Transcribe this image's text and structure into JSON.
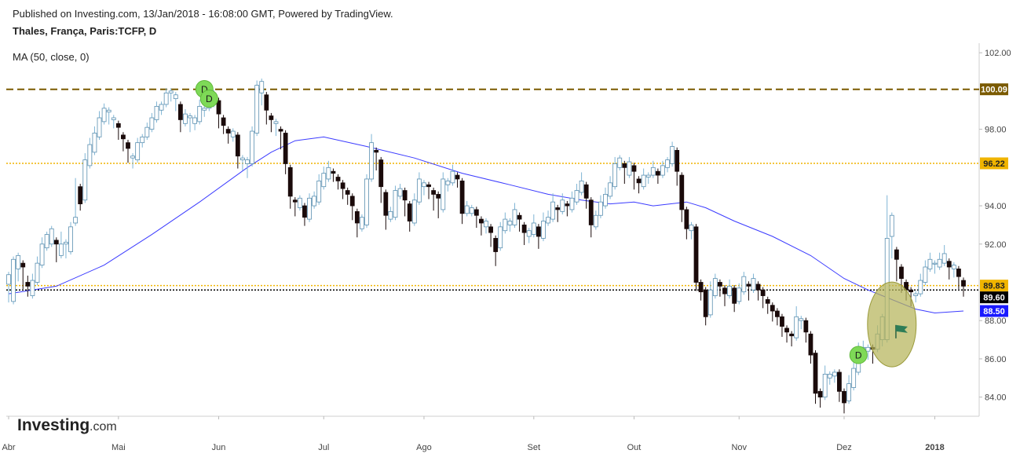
{
  "header": {
    "published": "Published on Investing.com, 13/Jan/2018 - 16:08:00 GMT, Powered by TradingView.",
    "symbol": "Thales, França, Paris:TCFP, D"
  },
  "indicator": {
    "label": "MA (50, close, 0)"
  },
  "logo": {
    "brand": "Investing",
    "suffix": ".com"
  },
  "colors": {
    "bull": "#ffffff",
    "bear": "#1a0a0a",
    "bull_border": "#9cc8e0",
    "ma": "#3b3bff",
    "resistance": "#7a5a00",
    "support": "#f0b400",
    "last_price": "#000000",
    "ellipse_fill": "#b5b45a",
    "markers": "#7ed957",
    "flag": "#2e7d57"
  },
  "chart_data": {
    "type": "candlestick",
    "title": "Thales, França, Paris:TCFP, D",
    "ylim": [
      83,
      102.5
    ],
    "y_ticks": [
      "84.00",
      "86.00",
      "88.00",
      "92.00",
      "94.00",
      "98.00",
      "102.00"
    ],
    "x_ticks": [
      "Abr",
      "Mai",
      "Jun",
      "Jul",
      "Ago",
      "Set",
      "Out",
      "Nov",
      "Dez",
      "2018"
    ],
    "x_tick_indices": [
      0,
      23,
      44,
      66,
      87,
      110,
      131,
      153,
      175,
      194
    ],
    "price_labels": [
      {
        "text": "100.09",
        "value": 100.09,
        "color": "#7a5a00"
      },
      {
        "text": "96.22",
        "value": 96.22,
        "color": "#f0b400"
      },
      {
        "text": "89.83",
        "value": 89.83,
        "color": "#f0b400"
      },
      {
        "text": "89.60",
        "value": 89.6,
        "color": "#000000"
      },
      {
        "text": "88.50",
        "value": 88.5,
        "color": "#1a1aff"
      }
    ],
    "h_lines": [
      {
        "value": 100.09,
        "style": "dashed",
        "color": "#7a5a00"
      },
      {
        "value": 96.22,
        "style": "dotted",
        "color": "#f0b400"
      },
      {
        "value": 89.83,
        "style": "dotted",
        "color": "#f0b400"
      },
      {
        "value": 89.6,
        "style": "dotted",
        "color": "#000000"
      }
    ],
    "markers": [
      {
        "label": "D",
        "index": 41,
        "price": 100.1
      },
      {
        "label": "D",
        "index": 42,
        "price": 99.6
      },
      {
        "label": "D",
        "index": 178,
        "price": 86.2
      }
    ],
    "ellipse": {
      "index": 185,
      "price": 87.8
    },
    "flag": {
      "index": 187,
      "price": 87.4
    },
    "ma": {
      "name": "MA (50, close, 0)",
      "points": [
        [
          0,
          89.4
        ],
        [
          10,
          89.8
        ],
        [
          20,
          90.9
        ],
        [
          30,
          92.5
        ],
        [
          40,
          94.2
        ],
        [
          50,
          96.0
        ],
        [
          55,
          96.8
        ],
        [
          60,
          97.4
        ],
        [
          66,
          97.6
        ],
        [
          75,
          97.1
        ],
        [
          85,
          96.5
        ],
        [
          95,
          95.7
        ],
        [
          105,
          95.1
        ],
        [
          113,
          94.6
        ],
        [
          120,
          94.3
        ],
        [
          126,
          94.1
        ],
        [
          131,
          94.2
        ],
        [
          135,
          94.0
        ],
        [
          142,
          94.2
        ],
        [
          146,
          93.9
        ],
        [
          152,
          93.2
        ],
        [
          160,
          92.4
        ],
        [
          168,
          91.4
        ],
        [
          175,
          90.2
        ],
        [
          180,
          89.6
        ],
        [
          185,
          89.1
        ],
        [
          190,
          88.6
        ],
        [
          194,
          88.4
        ],
        [
          200,
          88.5
        ]
      ]
    },
    "candles": [
      [
        89.9,
        90.4,
        89.2,
        89.1
      ],
      [
        89.0,
        91.2,
        89.3,
        90.8
      ],
      [
        90.7,
        91.4,
        90.2,
        91.0
      ],
      [
        91.0,
        90.8,
        89.8,
        90.0
      ],
      [
        90.0,
        89.8,
        90.2,
        89.4
      ],
      [
        89.3,
        90.1,
        89.8,
        90.3
      ],
      [
        90.0,
        91.0,
        90.8,
        91.2
      ],
      [
        90.9,
        92.0,
        91.6,
        92.2
      ],
      [
        91.8,
        92.5,
        92.0,
        91.8
      ],
      [
        92.0,
        92.8,
        92.3,
        92.2
      ],
      [
        92.2,
        92.0,
        91.3,
        91.2
      ],
      [
        91.4,
        92.0,
        91.9,
        92.5
      ],
      [
        92.0,
        92.1,
        91.5,
        91.4
      ],
      [
        91.6,
        92.9,
        92.5,
        93.0
      ],
      [
        93.1,
        93.4,
        95.2,
        95.3
      ],
      [
        95.0,
        94.1,
        93.9,
        94.0
      ],
      [
        94.3,
        96.4,
        96.0,
        96.6
      ],
      [
        96.1,
        97.2,
        96.8,
        97.4
      ],
      [
        96.8,
        97.8,
        97.5,
        98.0
      ],
      [
        97.6,
        98.6,
        98.3,
        98.8
      ],
      [
        98.4,
        99.1,
        98.8,
        99.2
      ],
      [
        98.9,
        99.0,
        98.6,
        98.4
      ],
      [
        98.5,
        98.6,
        98.4,
        98.2
      ],
      [
        98.3,
        98.1,
        97.9,
        97.6
      ],
      [
        97.7,
        97.5,
        97.2,
        97.0
      ],
      [
        97.3,
        97.0,
        96.8,
        96.4
      ],
      [
        96.5,
        96.6,
        96.2,
        96.1
      ],
      [
        96.4,
        97.3,
        97.0,
        97.4
      ],
      [
        97.3,
        97.6,
        97.5,
        97.2
      ],
      [
        97.6,
        98.1,
        98.0,
        98.2
      ],
      [
        98.0,
        98.6,
        98.5,
        98.7
      ],
      [
        98.5,
        99.2,
        99.0,
        99.3
      ],
      [
        99.0,
        99.3,
        99.1,
        98.9
      ],
      [
        99.3,
        99.9,
        99.7,
        100.0
      ],
      [
        99.9,
        100.0,
        99.9,
        99.6
      ],
      [
        99.6,
        99.8,
        99.2,
        99.1
      ],
      [
        99.3,
        98.5,
        98.2,
        98.0
      ],
      [
        98.3,
        98.8,
        98.6,
        98.9
      ],
      [
        98.6,
        98.7,
        98.2,
        98.0
      ],
      [
        98.3,
        98.6,
        98.4,
        98.1
      ],
      [
        98.4,
        99.2,
        99.0,
        99.4
      ],
      [
        99.0,
        99.1,
        98.9,
        98.8
      ],
      [
        99.1,
        100.1,
        99.9,
        100.2
      ],
      [
        99.8,
        99.9,
        99.4,
        99.3
      ],
      [
        99.5,
        98.8,
        98.5,
        98.2
      ],
      [
        98.6,
        98.2,
        98.0,
        97.9
      ],
      [
        98.0,
        97.8,
        97.6,
        97.4
      ],
      [
        97.6,
        97.9,
        97.7,
        97.5
      ],
      [
        97.7,
        96.6,
        96.3,
        96.1
      ],
      [
        96.4,
        96.5,
        96.2,
        96.0
      ],
      [
        96.2,
        96.4,
        96.1,
        95.6
      ],
      [
        96.2,
        97.9,
        97.7,
        98.0
      ],
      [
        97.8,
        100.3,
        100.0,
        100.4
      ],
      [
        99.9,
        100.5,
        99.8,
        99.4
      ],
      [
        99.8,
        99.0,
        98.6,
        98.4
      ],
      [
        98.7,
        98.5,
        98.2,
        98.0
      ],
      [
        98.3,
        98.4,
        98.0,
        97.8
      ],
      [
        98.0,
        97.9,
        97.8,
        97.1
      ],
      [
        97.8,
        96.2,
        96.0,
        95.8
      ],
      [
        96.0,
        94.5,
        94.3,
        94.0
      ],
      [
        94.3,
        94.2,
        93.7,
        93.6
      ],
      [
        93.9,
        94.4,
        94.1,
        94.2
      ],
      [
        94.0,
        93.4,
        93.2,
        93.1
      ],
      [
        93.3,
        94.4,
        94.2,
        94.5
      ],
      [
        94.0,
        94.5,
        94.3,
        94.6
      ],
      [
        94.2,
        95.3,
        95.0,
        95.5
      ],
      [
        95.0,
        95.7,
        95.5,
        95.9
      ],
      [
        95.4,
        96.0,
        95.9,
        96.2
      ],
      [
        95.8,
        95.7,
        95.5,
        95.4
      ],
      [
        95.5,
        95.3,
        95.1,
        95.0
      ],
      [
        95.2,
        94.9,
        94.6,
        94.5
      ],
      [
        94.8,
        94.6,
        94.4,
        94.2
      ],
      [
        94.5,
        94.0,
        93.7,
        93.4
      ],
      [
        93.7,
        93.1,
        92.9,
        92.5
      ],
      [
        92.8,
        93.4,
        93.1,
        93.3
      ],
      [
        93.0,
        95.4,
        95.2,
        95.5
      ],
      [
        95.4,
        97.3,
        97.0,
        97.6
      ],
      [
        96.9,
        96.8,
        96.3,
        96.0
      ],
      [
        96.4,
        95.0,
        94.6,
        94.3
      ],
      [
        94.7,
        93.5,
        93.2,
        92.9
      ],
      [
        93.3,
        93.7,
        93.5,
        93.8
      ],
      [
        93.4,
        94.8,
        94.5,
        94.9
      ],
      [
        94.5,
        94.9,
        94.7,
        95.0
      ],
      [
        94.8,
        94.3,
        93.9,
        93.6
      ],
      [
        94.1,
        93.2,
        93.0,
        92.8
      ],
      [
        93.1,
        94.3,
        94.2,
        94.5
      ],
      [
        94.2,
        95.4,
        95.1,
        95.6
      ],
      [
        95.0,
        95.2,
        94.9,
        94.7
      ],
      [
        95.1,
        95.0,
        94.8,
        94.5
      ],
      [
        94.8,
        94.6,
        94.3,
        93.9
      ],
      [
        94.6,
        94.4,
        93.7,
        93.5
      ],
      [
        93.8,
        95.4,
        95.2,
        95.6
      ],
      [
        95.1,
        95.3,
        95.0,
        94.9
      ],
      [
        95.2,
        95.8,
        95.6,
        96.0
      ],
      [
        95.6,
        95.4,
        95.2,
        95.1
      ],
      [
        95.3,
        93.6,
        93.3,
        93.2
      ],
      [
        93.6,
        94.0,
        93.8,
        94.1
      ],
      [
        93.6,
        93.9,
        93.6,
        93.8
      ],
      [
        93.8,
        93.5,
        93.2,
        93.0
      ],
      [
        93.3,
        93.1,
        92.8,
        92.6
      ],
      [
        92.9,
        93.2,
        92.9,
        92.7
      ],
      [
        92.9,
        92.6,
        92.1,
        92.0
      ],
      [
        92.3,
        91.6,
        91.5,
        91.0
      ],
      [
        91.8,
        92.9,
        92.6,
        93.0
      ],
      [
        92.7,
        93.3,
        93.1,
        93.5
      ],
      [
        93.0,
        93.2,
        92.9,
        92.8
      ],
      [
        93.0,
        93.8,
        93.6,
        94.0
      ],
      [
        93.5,
        93.3,
        92.9,
        92.8
      ],
      [
        93.0,
        92.6,
        92.2,
        92.1
      ],
      [
        92.4,
        92.7,
        92.5,
        92.2
      ],
      [
        92.5,
        93.1,
        93.0,
        93.4
      ],
      [
        92.9,
        92.4,
        92.1,
        91.9
      ],
      [
        92.3,
        93.2,
        93.1,
        93.5
      ],
      [
        93.1,
        93.4,
        93.2,
        93.6
      ],
      [
        93.3,
        94.2,
        94.0,
        94.5
      ],
      [
        93.9,
        93.8,
        93.6,
        93.3
      ],
      [
        93.7,
        94.3,
        94.2,
        94.5
      ],
      [
        94.1,
        94.0,
        93.8,
        93.6
      ],
      [
        93.8,
        94.4,
        94.2,
        94.6
      ],
      [
        94.2,
        94.8,
        94.6,
        95.0
      ],
      [
        94.7,
        95.3,
        95.1,
        95.6
      ],
      [
        95.1,
        94.4,
        94.2,
        94.0
      ],
      [
        94.3,
        93.0,
        92.8,
        92.5
      ],
      [
        92.9,
        93.5,
        93.3,
        93.6
      ],
      [
        93.5,
        94.2,
        94.0,
        94.4
      ],
      [
        94.0,
        94.6,
        94.4,
        94.8
      ],
      [
        94.5,
        95.2,
        95.0,
        95.4
      ],
      [
        95.0,
        96.2,
        96.0,
        96.4
      ],
      [
        96.0,
        96.5,
        96.2,
        96.0
      ],
      [
        96.2,
        96.0,
        95.5,
        95.3
      ],
      [
        95.6,
        96.3,
        96.1,
        96.4
      ],
      [
        96.1,
        95.8,
        95.2,
        95.0
      ],
      [
        95.4,
        95.2,
        95.0,
        94.8
      ],
      [
        95.0,
        95.6,
        95.4,
        95.8
      ],
      [
        95.5,
        95.6,
        95.4,
        95.3
      ],
      [
        95.6,
        96.0,
        95.8,
        96.2
      ],
      [
        95.8,
        95.6,
        95.4,
        95.3
      ],
      [
        95.6,
        96.1,
        95.9,
        96.2
      ],
      [
        96.0,
        96.4,
        96.1,
        95.9
      ],
      [
        96.2,
        97.1,
        96.9,
        97.2
      ],
      [
        96.9,
        95.8,
        95.5,
        95.2
      ],
      [
        95.6,
        93.8,
        93.6,
        93.3
      ],
      [
        93.8,
        92.8,
        92.5,
        92.4
      ],
      [
        92.7,
        93.0,
        92.9,
        92.4
      ],
      [
        92.9,
        90.0,
        89.8,
        89.7
      ],
      [
        90.0,
        89.5,
        89.3,
        89.2
      ],
      [
        89.6,
        88.2,
        88.0,
        87.9
      ],
      [
        88.3,
        89.6,
        89.3,
        89.9
      ],
      [
        89.3,
        90.2,
        90.0,
        90.3
      ],
      [
        90.0,
        89.8,
        89.6,
        89.4
      ],
      [
        89.7,
        89.4,
        89.1,
        88.9
      ],
      [
        89.3,
        89.8,
        89.6,
        90.0
      ],
      [
        89.7,
        88.9,
        88.7,
        88.6
      ],
      [
        89.0,
        89.7,
        89.5,
        89.8
      ],
      [
        89.5,
        90.3,
        90.1,
        90.4
      ],
      [
        89.9,
        89.8,
        89.4,
        89.2
      ],
      [
        89.6,
        90.2,
        90.0,
        90.3
      ],
      [
        89.9,
        89.6,
        89.4,
        89.2
      ],
      [
        89.6,
        89.3,
        89.0,
        88.8
      ],
      [
        89.1,
        88.9,
        88.7,
        88.5
      ],
      [
        88.8,
        88.5,
        88.3,
        88.1
      ],
      [
        88.5,
        88.2,
        88.0,
        87.9
      ],
      [
        88.2,
        87.7,
        87.5,
        87.3
      ],
      [
        87.6,
        87.4,
        87.2,
        87.0
      ],
      [
        87.3,
        87.2,
        86.9,
        86.8
      ],
      [
        87.1,
        88.2,
        88.0,
        88.6
      ],
      [
        88.0,
        88.1,
        87.9,
        87.7
      ],
      [
        88.0,
        87.4,
        87.2,
        87.0
      ],
      [
        87.3,
        86.2,
        86.0,
        85.9
      ],
      [
        86.3,
        84.2,
        84.0,
        83.8
      ],
      [
        84.3,
        84.0,
        83.8,
        83.6
      ],
      [
        84.0,
        85.2,
        85.0,
        85.5
      ],
      [
        85.0,
        85.2,
        85.0,
        84.8
      ],
      [
        85.1,
        85.3,
        85.1,
        84.9
      ],
      [
        85.3,
        84.3,
        84.1,
        83.9
      ],
      [
        84.3,
        83.7,
        83.5,
        83.3
      ],
      [
        83.8,
        84.7,
        84.5,
        85.0
      ],
      [
        84.5,
        85.5,
        85.3,
        85.8
      ],
      [
        85.3,
        86.4,
        86.2,
        86.7
      ],
      [
        86.2,
        86.6,
        86.4,
        86.8
      ],
      [
        86.4,
        86.6,
        86.3,
        86.1
      ],
      [
        86.6,
        86.5,
        86.2,
        85.9
      ],
      [
        86.5,
        87.3,
        87.0,
        87.6
      ],
      [
        87.0,
        88.2,
        86.9,
        86.8
      ],
      [
        87.0,
        92.3,
        91.9,
        94.4
      ],
      [
        92.4,
        93.5,
        91.6,
        91.4
      ],
      [
        91.7,
        91.2,
        90.5,
        90.2
      ],
      [
        90.8,
        90.2,
        89.8,
        89.6
      ],
      [
        90.0,
        89.6,
        89.4,
        89.2
      ],
      [
        89.6,
        89.5,
        89.2,
        88.9
      ],
      [
        89.3,
        89.4,
        89.3,
        89.1
      ],
      [
        89.4,
        90.1,
        89.9,
        90.3
      ],
      [
        90.0,
        90.8,
        90.6,
        91.0
      ],
      [
        90.7,
        91.2,
        91.0,
        91.4
      ],
      [
        91.0,
        91.0,
        90.8,
        90.6
      ],
      [
        90.8,
        91.2,
        91.1,
        91.4
      ],
      [
        91.0,
        91.5,
        91.2,
        91.8
      ],
      [
        91.1,
        90.8,
        90.5,
        90.3
      ],
      [
        90.7,
        90.9,
        90.7,
        90.4
      ],
      [
        90.7,
        90.3,
        90.0,
        89.8
      ],
      [
        90.1,
        89.8,
        89.5,
        89.4
      ]
    ]
  }
}
